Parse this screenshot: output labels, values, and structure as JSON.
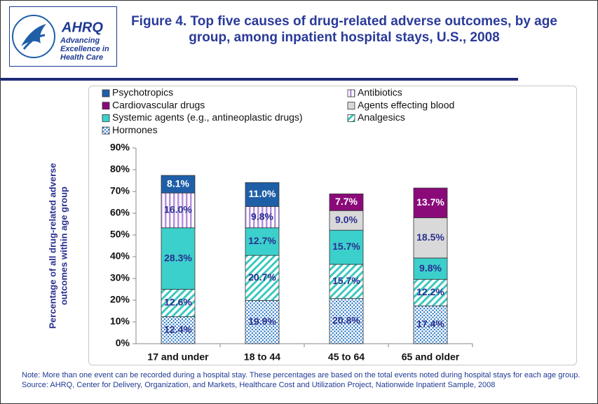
{
  "header": {
    "logo_name": "AHRQ",
    "logo_tagline": "Advancing Excellence in Health Care"
  },
  "chart_data": {
    "type": "stacked-bar",
    "title": "Figure 4. Top five causes of drug-related adverse outcomes, by age group, among inpatient hospital stays, U.S., 2008",
    "y_label": [
      "Percentage of all drug-related adverse",
      "outcomes within age group"
    ],
    "categories": [
      "17 and under",
      "18 to 44",
      "45 to 64",
      "65 and older"
    ],
    "ylim": [
      0,
      90
    ],
    "yticks": [
      {
        "value": 0,
        "label": "0%"
      },
      {
        "value": 10,
        "label": "10%"
      },
      {
        "value": 20,
        "label": "20%"
      },
      {
        "value": 30,
        "label": "30%"
      },
      {
        "value": 40,
        "label": "40%"
      },
      {
        "value": 50,
        "label": "50%"
      },
      {
        "value": 60,
        "label": "60%"
      },
      {
        "value": 70,
        "label": "70%"
      },
      {
        "value": 80,
        "label": "80%"
      },
      {
        "value": 90,
        "label": "90%"
      }
    ],
    "series": [
      {
        "name": "Psychotropics",
        "color": "#1f5fa8",
        "pattern": "solid",
        "label_color": "#ffffff",
        "values": [
          8.1,
          11.0,
          null,
          null
        ],
        "value_labels": [
          "8.1%",
          "11.0%",
          null,
          null
        ]
      },
      {
        "name": "Antibiotics",
        "color": "#b48fe0",
        "pattern": "vertical-stripes",
        "label_color": "#2a2f8f",
        "values": [
          16.0,
          9.8,
          null,
          null
        ],
        "value_labels": [
          "16.0%",
          "9.8%",
          null,
          null
        ]
      },
      {
        "name": "Cardiovascular drugs",
        "color": "#8b0a7a",
        "pattern": "solid",
        "label_color": "#ffffff",
        "values": [
          null,
          null,
          7.7,
          13.7
        ],
        "value_labels": [
          null,
          null,
          "7.7%",
          "13.7%"
        ]
      },
      {
        "name": "Agents effecting blood",
        "color": "#d9d9d9",
        "pattern": "solid",
        "label_color": "#2a2f8f",
        "values": [
          null,
          null,
          9.0,
          18.5
        ],
        "value_labels": [
          null,
          null,
          "9.0%",
          "18.5%"
        ]
      },
      {
        "name": "Systemic agents  (e.g., antineoplastic drugs)",
        "color": "#3cd0cc",
        "pattern": "solid",
        "label_color": "#2a2f8f",
        "values": [
          28.3,
          12.7,
          15.7,
          9.8
        ],
        "value_labels": [
          "28.3%",
          "12.7%",
          "15.7%",
          "9.8%"
        ]
      },
      {
        "name": "Analgesics",
        "color": "#3cc8c0",
        "pattern": "diagonal-stripes",
        "label_color": "#2a2f8f",
        "values": [
          12.6,
          20.7,
          15.7,
          12.2
        ],
        "value_labels": [
          "12.6%",
          "20.7%",
          "15.7%",
          "12.2%"
        ]
      },
      {
        "name": "Hormones",
        "color": "#2a78c8",
        "pattern": "dots",
        "label_color": "#2a2f8f",
        "values": [
          12.4,
          19.9,
          20.8,
          17.4
        ],
        "value_labels": [
          "12.4%",
          "19.9%",
          "20.8%",
          "17.4%"
        ]
      }
    ]
  },
  "note": "Note: More than one event can be recorded during a hospital stay. These percentages are based on the total events noted during hospital stays for each age group.",
  "source": "Source: AHRQ, Center for Delivery, Organization, and Markets, Healthcare Cost and Utilization Project, Nationwide Inpatient Sample, 2008"
}
